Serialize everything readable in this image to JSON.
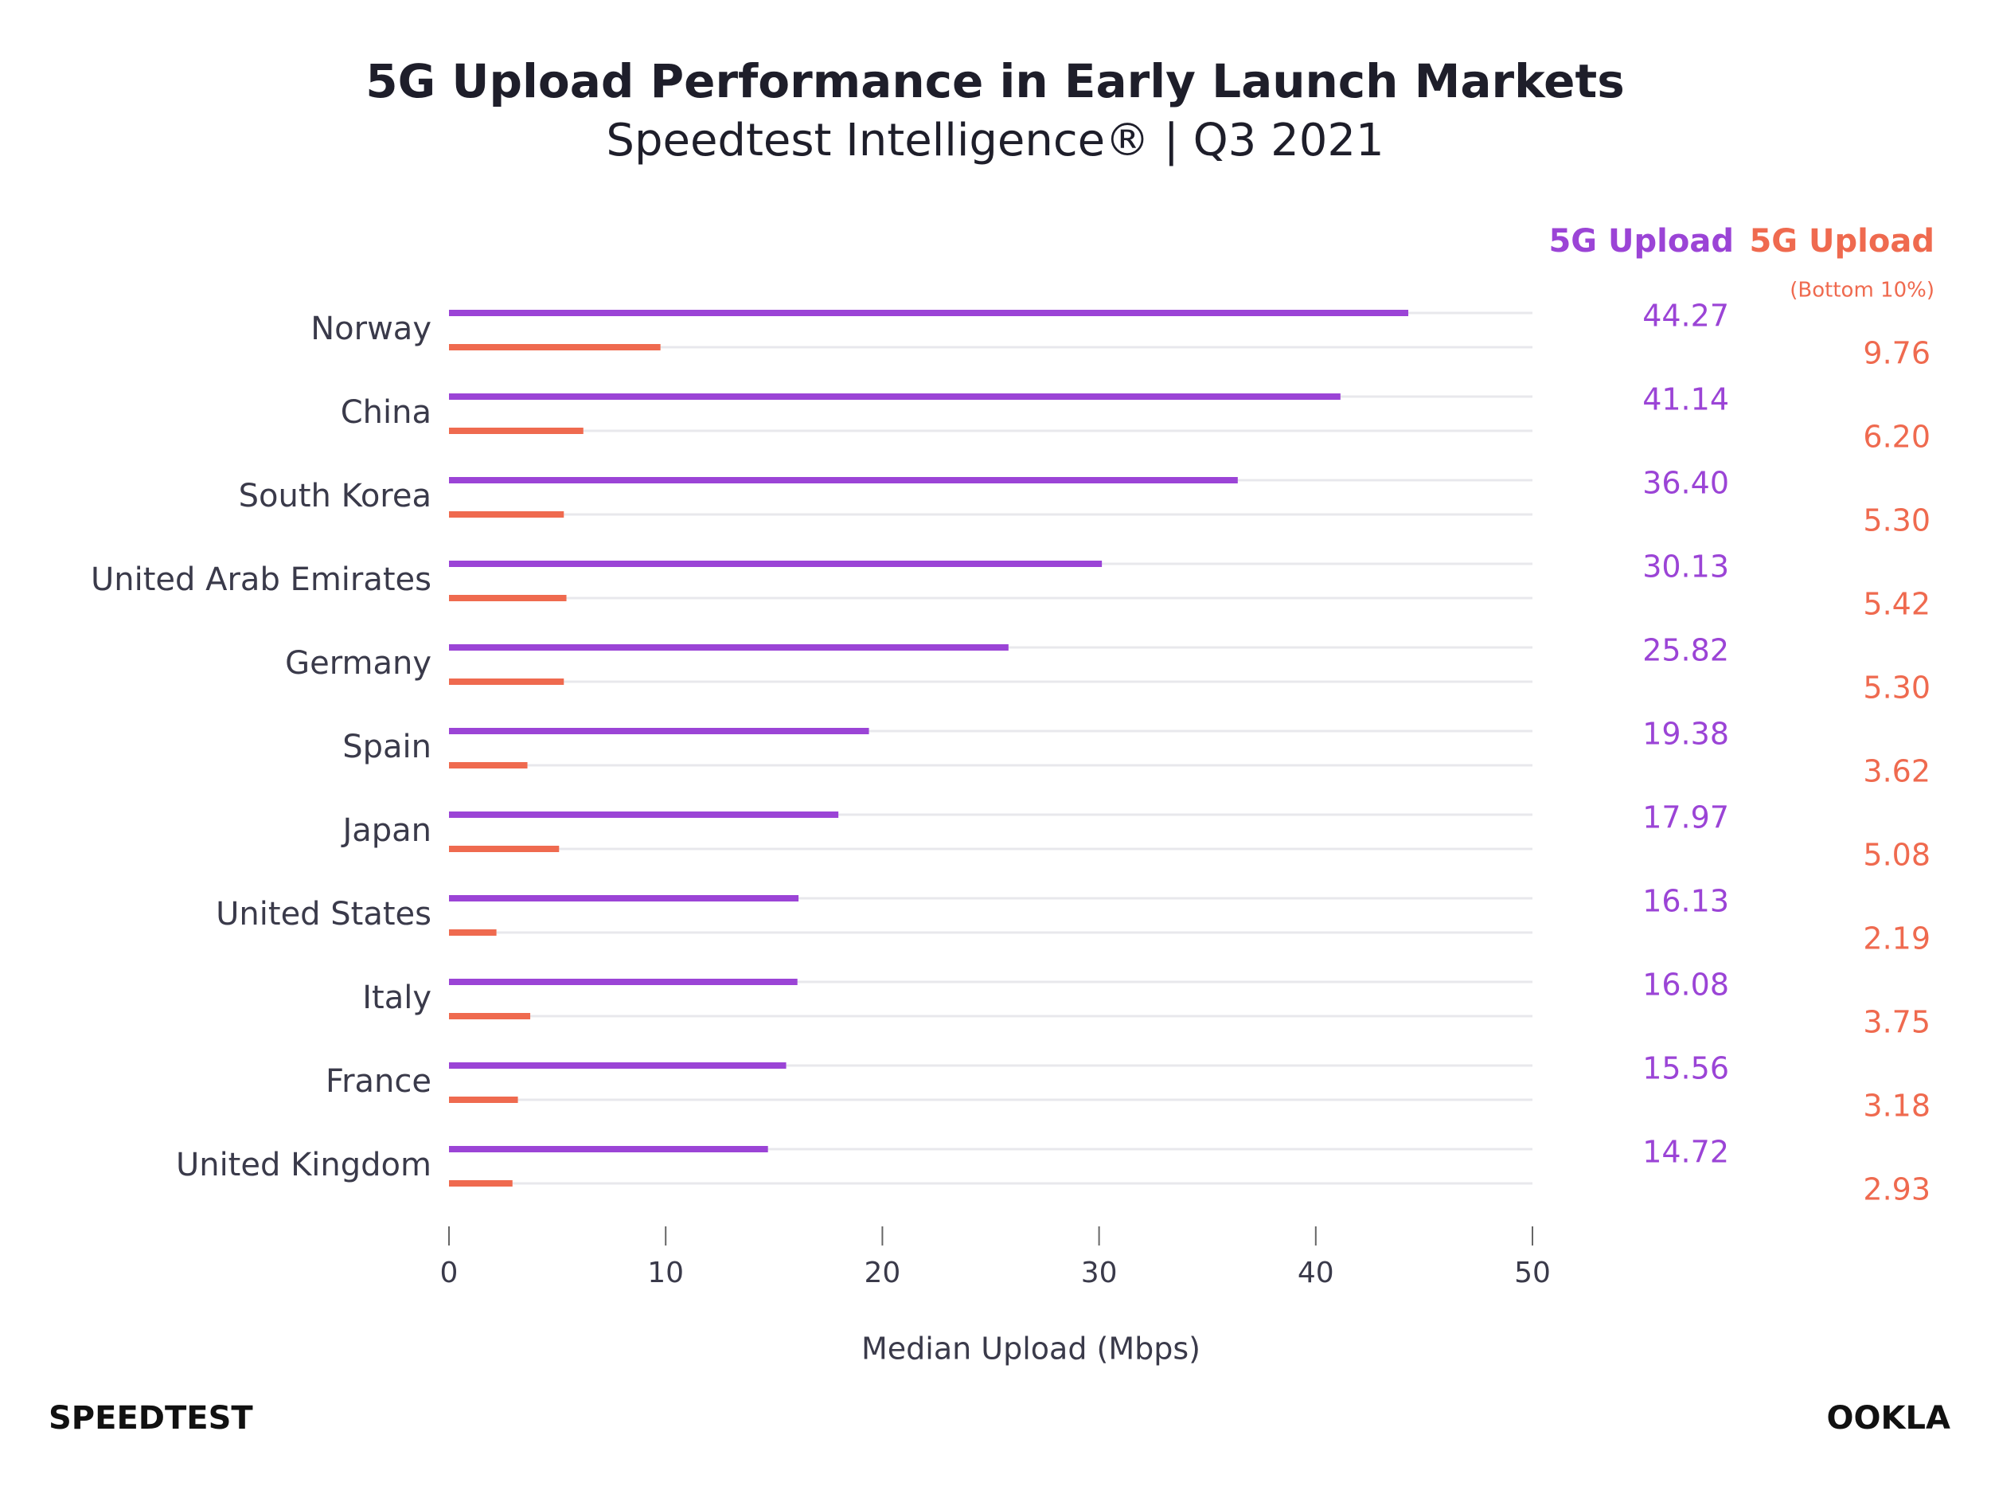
{
  "chart_data": {
    "type": "hbar",
    "title": "5G Upload Performance in Early Launch Markets",
    "subtitle": "Speedtest Intelligence® | Q3 2021",
    "x_label": "Median Upload (Mbps)",
    "categories": [
      "Norway",
      "China",
      "South Korea",
      "United Arab Emirates",
      "Germany",
      "Spain",
      "Japan",
      "United States",
      "Italy",
      "France",
      "United Kingdom"
    ],
    "series": [
      {
        "name": "5G Upload",
        "color": "#9b44d6",
        "values": [
          44.27,
          41.14,
          36.4,
          30.13,
          25.82,
          19.38,
          17.97,
          16.13,
          16.08,
          15.56,
          14.72
        ],
        "value_labels": [
          "44.27",
          "41.14",
          "36.40",
          "30.13",
          "25.82",
          "19.38",
          "17.97",
          "16.13",
          "16.08",
          "15.56",
          "14.72"
        ]
      },
      {
        "name": "5G Upload",
        "name_note": "(Bottom 10%)",
        "color": "#ef6a4f",
        "values": [
          9.76,
          6.2,
          5.3,
          5.42,
          5.3,
          3.62,
          5.08,
          2.19,
          3.75,
          3.18,
          2.93
        ],
        "value_labels": [
          "9.76",
          "6.20",
          "5.30",
          "5.42",
          "5.30",
          "3.62",
          "5.08",
          "2.19",
          "3.75",
          "3.18",
          "2.93"
        ]
      }
    ],
    "xlim": [
      0,
      50
    ],
    "xticks": [
      0,
      10,
      20,
      30,
      40,
      50
    ],
    "grid": true
  },
  "branding": {
    "left": "SPEEDTEST",
    "right": "OOKLA"
  }
}
